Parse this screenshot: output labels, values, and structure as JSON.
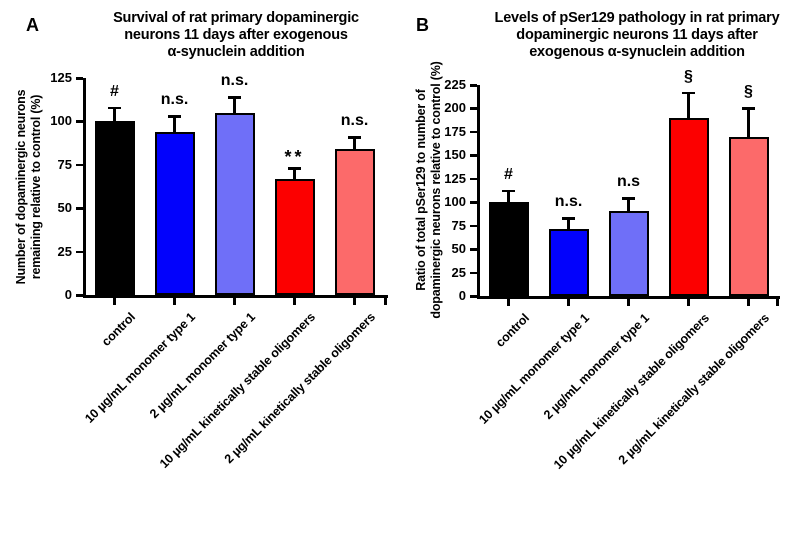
{
  "figure": {
    "background": "#ffffff",
    "axis_color": "#000000"
  },
  "chart_data": [
    {
      "type": "bar",
      "panel_letter": "A",
      "title": "Survival of rat primary dopaminergic\nneurons 11 days after exogenous\nα-synuclein addition",
      "ylabel": "Number of dopaminergic neurons\nremaining relative to control (%)",
      "xlabel": "",
      "categories": [
        "control",
        "10 µg/mL monomer type 1",
        "2 µg/mL monomer type 1",
        "10 µg/mL kinetically stable oligomers",
        "2 µg/mL kinetically stable oligomers"
      ],
      "values": [
        100,
        94,
        105,
        67,
        84
      ],
      "errors": [
        8,
        9,
        9,
        6,
        7
      ],
      "annotations": [
        "#",
        "n.s.",
        "n.s.",
        "**",
        "n.s."
      ],
      "bar_colors": [
        "#000000",
        "#0202fc",
        "#6f6ff8",
        "#fc0000",
        "#fc6a6a"
      ],
      "ylim": [
        0,
        125
      ],
      "ytick_step": 25,
      "yticks": [
        0,
        25,
        50,
        75,
        100,
        125
      ],
      "grid": false,
      "legend": "none"
    },
    {
      "type": "bar",
      "panel_letter": "B",
      "title": "Levels of pSer129 pathology in rat primary\ndopaminergic neurons 11 days after\nexogenous α-synuclein addition",
      "ylabel": "Ratio of total pSer129 to number of\ndopaminergic neurons relative to control (%)",
      "xlabel": "",
      "categories": [
        "control",
        "10 µg/mL monomer type 1",
        "2 µg/mL monomer type 1",
        "10 µg/mL kinetically stable oligomers",
        "2 µg/mL kinetically stable oligomers"
      ],
      "values": [
        100,
        71,
        91,
        190,
        170
      ],
      "errors": [
        12,
        12,
        13,
        27,
        30
      ],
      "annotations": [
        "#",
        "n.s.",
        "n.s",
        "§",
        "§"
      ],
      "bar_colors": [
        "#000000",
        "#0202fc",
        "#6f6ff8",
        "#fc0000",
        "#fc6a6a"
      ],
      "ylim": [
        0,
        225
      ],
      "ytick_step": 25,
      "yticks": [
        0,
        25,
        50,
        75,
        100,
        125,
        150,
        175,
        200,
        225
      ],
      "grid": false,
      "legend": "none"
    }
  ]
}
